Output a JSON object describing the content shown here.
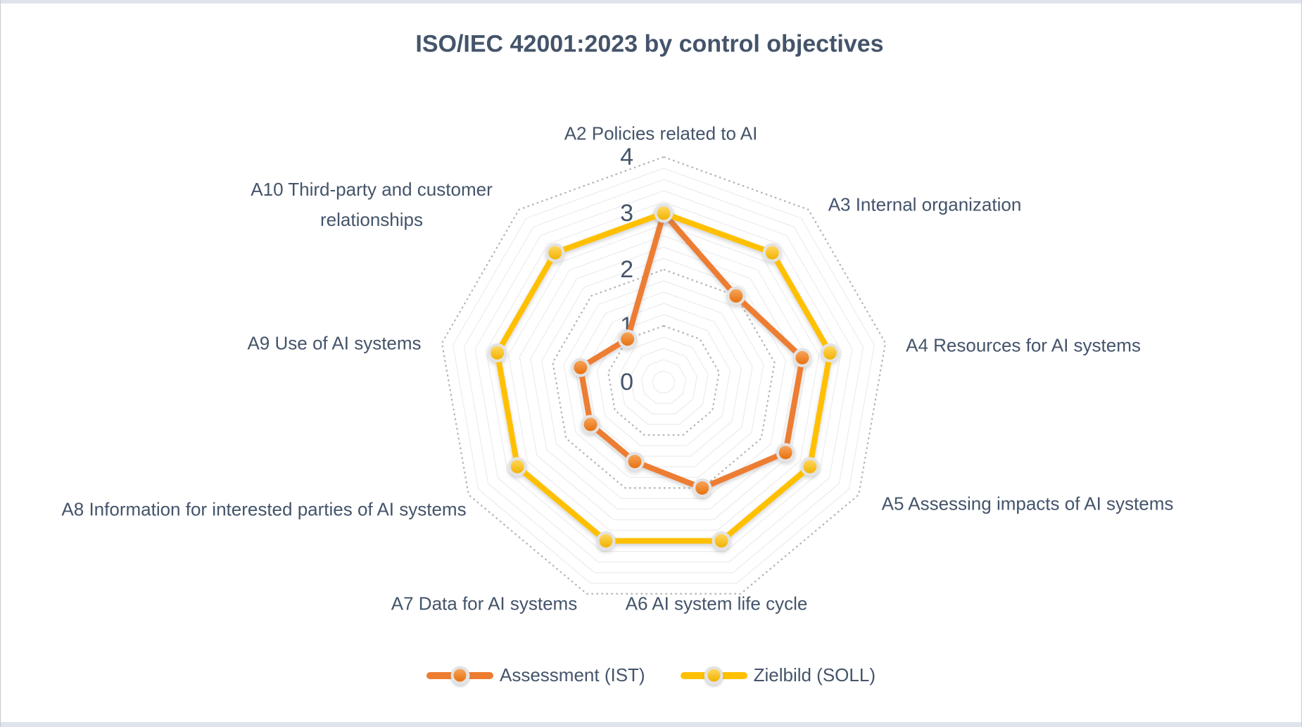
{
  "frame": {
    "top_strip_color": "#dfe4ec",
    "bottom_strip_color": "#dfe4ec"
  },
  "colors": {
    "text": "#44546A",
    "major_grid": "#b3b3b3",
    "minor_grid": "#ececec",
    "marker_ring": "#e3e3e3",
    "background": "#ffffff"
  },
  "chart_data": {
    "type": "radar",
    "title": "ISO/IEC 42001:2023 by control objectives",
    "categories": [
      "A2 Policies related to AI",
      "A3 Internal organization",
      "A4 Resources for AI systems",
      "A5 Assessing impacts of AI systems",
      "A6 AI system life cycle",
      "A7 Data for AI systems",
      "A8 Information for interested parties of AI systems",
      "A9 Use of AI systems",
      "A10 Third-party and customer relationships"
    ],
    "series": [
      {
        "name": "Assessment (IST)",
        "color": "#ED7D31",
        "marker_gradient": [
          "#F6A55A",
          "#E8700E"
        ],
        "values": [
          3,
          2,
          2.5,
          2.5,
          2,
          1.5,
          1.5,
          1.5,
          1
        ]
      },
      {
        "name": "Zielbild (SOLL)",
        "color": "#FFC000",
        "marker_gradient": [
          "#FFD75E",
          "#F2B200"
        ],
        "values": [
          3,
          3,
          3,
          3,
          3,
          3,
          3,
          3,
          3
        ]
      }
    ],
    "axis": {
      "min": 0,
      "max": 4,
      "major_unit": 1,
      "minor_unit": 0.2,
      "ticks": [
        "0",
        "1",
        "2",
        "3",
        "4"
      ]
    },
    "legend_position": "bottom",
    "grid": {
      "major_style": "dotted",
      "minor_style": "solid",
      "radial_spokes": false
    }
  }
}
